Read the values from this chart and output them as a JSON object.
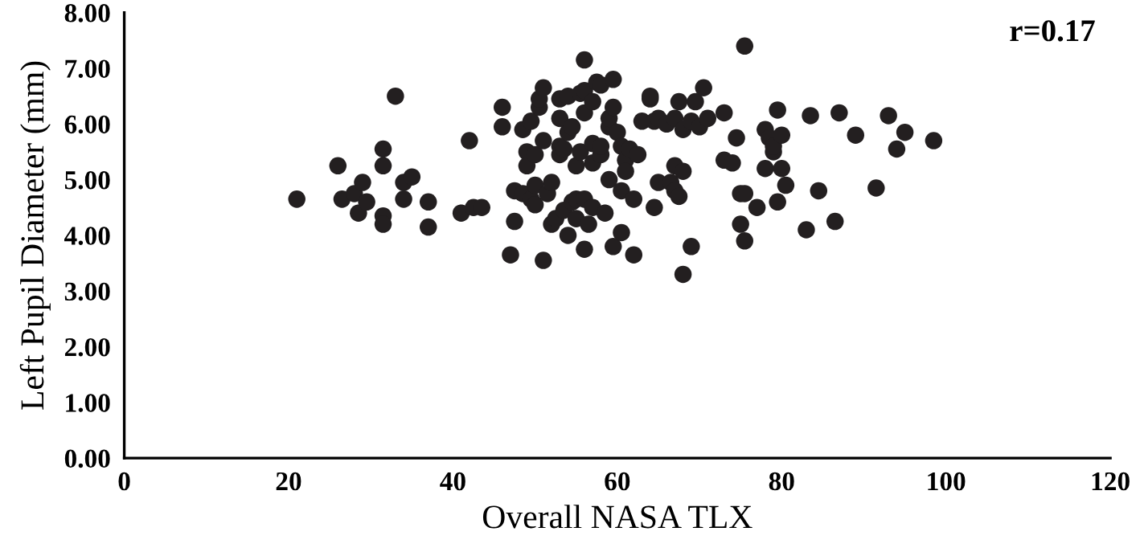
{
  "chart_data": {
    "type": "scatter",
    "xlabel": "Overall NASA TLX",
    "ylabel": "Left Pupil Diameter (mm)",
    "annotations": [
      "r=0.17"
    ],
    "xlim": [
      0,
      120
    ],
    "xticks": [
      0,
      20,
      40,
      60,
      80,
      100,
      120
    ],
    "ylim": [
      0,
      8
    ],
    "yticks": [
      {
        "value": 0,
        "label": "0.00"
      },
      {
        "value": 1,
        "label": "1.00"
      },
      {
        "value": 2,
        "label": "2.00"
      },
      {
        "value": 3,
        "label": "3.00"
      },
      {
        "value": 4,
        "label": "4.00"
      },
      {
        "value": 5,
        "label": "5.00"
      },
      {
        "value": 6,
        "label": "6.00"
      },
      {
        "value": 7,
        "label": "7.00"
      },
      {
        "value": 8,
        "label": "8.00"
      }
    ],
    "grid": false,
    "legend": false,
    "marker": "circle",
    "series": [
      {
        "color": "#231f20",
        "x": [
          21,
          26,
          26.5,
          28,
          29,
          28.5,
          29.5,
          31.5,
          31.5,
          31.5,
          31.5,
          33,
          34,
          34,
          35,
          37,
          37,
          41,
          42,
          42.5,
          43.5,
          46,
          46,
          47,
          47.5,
          47.5,
          48.5,
          48.5,
          49,
          49,
          49.5,
          49.5,
          50,
          50,
          50,
          50.5,
          50.5,
          51,
          51,
          51,
          51.5,
          52,
          52,
          52.5,
          53,
          53,
          53,
          53,
          53.5,
          53.5,
          54,
          54,
          54,
          54.5,
          54.5,
          55,
          55,
          55,
          55.5,
          55.5,
          56,
          56,
          56,
          56,
          56,
          56.5,
          57,
          57,
          57,
          57,
          57.5,
          58,
          58,
          58,
          58.5,
          59,
          59,
          59,
          59.5,
          59.5,
          59.5,
          60,
          60.5,
          60.5,
          60.5,
          61,
          61,
          61.5,
          62,
          62,
          62.5,
          63,
          64,
          64,
          64.5,
          64.5,
          65,
          65,
          66,
          66.5,
          67,
          67,
          67,
          67.5,
          67.5,
          68,
          68,
          68,
          69,
          69,
          69.5,
          70,
          70.5,
          71,
          73,
          73,
          74,
          74.5,
          75,
          75,
          75.5,
          75.5,
          75.5,
          77,
          78,
          78,
          78.5,
          79,
          79,
          79.5,
          79.5,
          80,
          80,
          80.5,
          83,
          83.5,
          84.5,
          86.5,
          87,
          89,
          91.5,
          93,
          94,
          95,
          98.5
        ],
        "values": [
          4.65,
          5.25,
          4.65,
          4.75,
          4.95,
          4.4,
          4.6,
          5.55,
          5.25,
          4.35,
          4.2,
          6.5,
          4.65,
          4.95,
          5.05,
          4.6,
          4.15,
          4.4,
          5.7,
          4.5,
          4.5,
          6.3,
          5.95,
          3.65,
          4.25,
          4.8,
          5.9,
          4.75,
          5.5,
          5.25,
          4.65,
          6.05,
          4.9,
          5.45,
          4.55,
          6.3,
          6.45,
          6.65,
          3.55,
          5.7,
          4.75,
          4.95,
          4.2,
          4.3,
          6.1,
          5.6,
          5.45,
          6.45,
          5.55,
          4.45,
          4.0,
          5.85,
          6.5,
          5.95,
          4.6,
          5.25,
          4.3,
          4.65,
          6.55,
          5.5,
          6.2,
          6.6,
          7.15,
          4.65,
          3.75,
          4.2,
          5.3,
          5.65,
          6.4,
          4.5,
          6.75,
          5.45,
          6.7,
          5.6,
          4.4,
          5.95,
          6.1,
          5.0,
          6.8,
          6.3,
          3.8,
          5.85,
          4.8,
          5.6,
          4.05,
          5.35,
          5.15,
          5.55,
          4.65,
          3.65,
          5.45,
          6.05,
          6.45,
          6.5,
          6.05,
          4.5,
          6.1,
          4.95,
          6.0,
          4.95,
          6.1,
          5.25,
          4.8,
          6.4,
          4.7,
          5.9,
          5.15,
          3.3,
          6.05,
          3.8,
          6.4,
          5.95,
          6.65,
          6.1,
          6.2,
          5.35,
          5.3,
          5.75,
          4.75,
          4.2,
          4.75,
          7.4,
          3.9,
          4.5,
          5.9,
          5.2,
          5.75,
          5.5,
          5.6,
          6.25,
          4.6,
          5.8,
          5.2,
          4.9,
          4.1,
          6.15,
          4.8,
          4.25,
          6.2,
          5.8,
          4.85,
          6.15,
          5.55,
          5.85,
          5.7
        ]
      }
    ]
  }
}
